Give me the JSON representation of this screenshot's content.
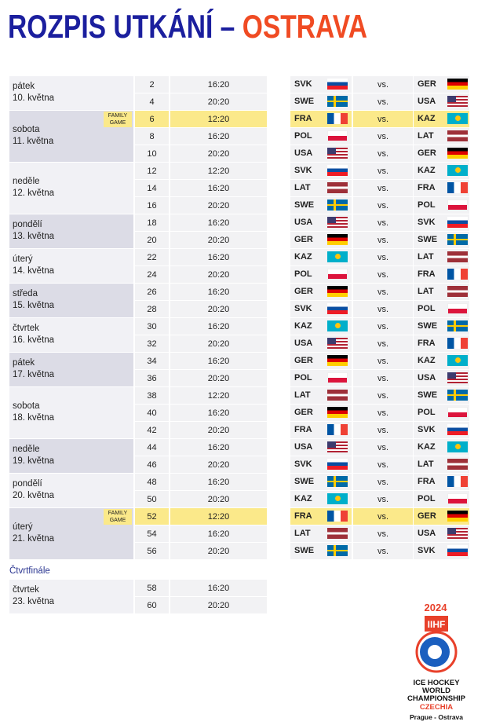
{
  "header": {
    "title": "ROZPIS UTKÁNÍ –",
    "city": "OSTRAVA"
  },
  "labels": {
    "vs": "vs.",
    "family": [
      "FAMILY",
      "GAME"
    ]
  },
  "days": [
    {
      "day": "pátek",
      "date": "10. května",
      "games": [
        {
          "no": 2,
          "time": "16:20",
          "home": "SVK",
          "away": "GER"
        },
        {
          "no": 4,
          "time": "20:20",
          "home": "SWE",
          "away": "USA"
        }
      ]
    },
    {
      "day": "sobota",
      "date": "11. května",
      "games": [
        {
          "no": 6,
          "time": "12:20",
          "home": "FRA",
          "away": "KAZ",
          "family": true
        },
        {
          "no": 8,
          "time": "16:20",
          "home": "POL",
          "away": "LAT"
        },
        {
          "no": 10,
          "time": "20:20",
          "home": "USA",
          "away": "GER"
        }
      ]
    },
    {
      "day": "neděle",
      "date": "12. května",
      "games": [
        {
          "no": 12,
          "time": "12:20",
          "home": "SVK",
          "away": "KAZ"
        },
        {
          "no": 14,
          "time": "16:20",
          "home": "LAT",
          "away": "FRA"
        },
        {
          "no": 16,
          "time": "20:20",
          "home": "SWE",
          "away": "POL"
        }
      ]
    },
    {
      "day": "pondělí",
      "date": "13. května",
      "games": [
        {
          "no": 18,
          "time": "16:20",
          "home": "USA",
          "away": "SVK"
        },
        {
          "no": 20,
          "time": "20:20",
          "home": "GER",
          "away": "SWE"
        }
      ]
    },
    {
      "day": "úterý",
      "date": "14. května",
      "games": [
        {
          "no": 22,
          "time": "16:20",
          "home": "KAZ",
          "away": "LAT"
        },
        {
          "no": 24,
          "time": "20:20",
          "home": "POL",
          "away": "FRA"
        }
      ]
    },
    {
      "day": "středa",
      "date": "15. května",
      "games": [
        {
          "no": 26,
          "time": "16:20",
          "home": "GER",
          "away": "LAT"
        },
        {
          "no": 28,
          "time": "20:20",
          "home": "SVK",
          "away": "POL"
        }
      ]
    },
    {
      "day": "čtvrtek",
      "date": "16. května",
      "games": [
        {
          "no": 30,
          "time": "16:20",
          "home": "KAZ",
          "away": "SWE"
        },
        {
          "no": 32,
          "time": "20:20",
          "home": "USA",
          "away": "FRA"
        }
      ]
    },
    {
      "day": "pátek",
      "date": "17. května",
      "games": [
        {
          "no": 34,
          "time": "16:20",
          "home": "GER",
          "away": "KAZ"
        },
        {
          "no": 36,
          "time": "20:20",
          "home": "POL",
          "away": "USA"
        }
      ]
    },
    {
      "day": "sobota",
      "date": "18. května",
      "games": [
        {
          "no": 38,
          "time": "12:20",
          "home": "LAT",
          "away": "SWE"
        },
        {
          "no": 40,
          "time": "16:20",
          "home": "GER",
          "away": "POL"
        },
        {
          "no": 42,
          "time": "20:20",
          "home": "FRA",
          "away": "SVK"
        }
      ]
    },
    {
      "day": "neděle",
      "date": "19. května",
      "games": [
        {
          "no": 44,
          "time": "16:20",
          "home": "USA",
          "away": "KAZ"
        },
        {
          "no": 46,
          "time": "20:20",
          "home": "SVK",
          "away": "LAT"
        }
      ]
    },
    {
      "day": "pondělí",
      "date": "20. května",
      "games": [
        {
          "no": 48,
          "time": "16:20",
          "home": "SWE",
          "away": "FRA"
        },
        {
          "no": 50,
          "time": "20:20",
          "home": "KAZ",
          "away": "POL"
        }
      ]
    },
    {
      "day": "úterý",
      "date": "21. května",
      "games": [
        {
          "no": 52,
          "time": "12:20",
          "home": "FRA",
          "away": "GER",
          "family": true
        },
        {
          "no": 54,
          "time": "16:20",
          "home": "LAT",
          "away": "USA"
        },
        {
          "no": 56,
          "time": "20:20",
          "home": "SWE",
          "away": "SVK"
        }
      ]
    }
  ],
  "quarterfinals": {
    "label": "Čtvrtfinále",
    "day": "čtvrtek",
    "date": "23. května",
    "games": [
      {
        "no": 58,
        "time": "16:20"
      },
      {
        "no": 60,
        "time": "20:20"
      }
    ]
  },
  "logo": {
    "year": "2024",
    "brand": "IIHF",
    "lines": [
      "ICE HOCKEY",
      "WORLD",
      "CHAMPIONSHIP"
    ],
    "country": "CZECHIA",
    "cities": "Prague - Ostrava"
  }
}
